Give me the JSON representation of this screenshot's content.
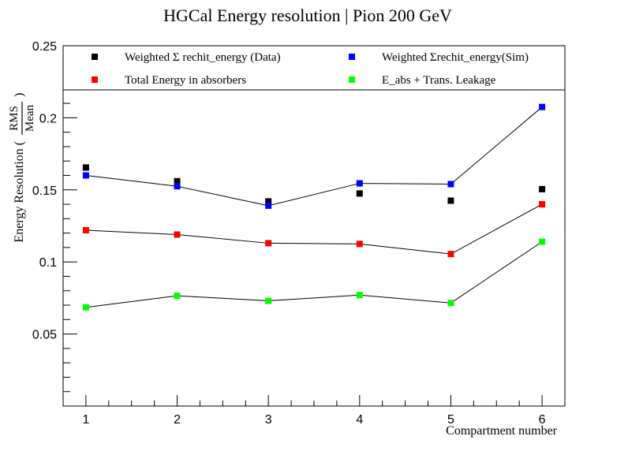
{
  "chart_data": {
    "type": "scatter",
    "title": "HGCal Energy resolution | Pion 200 GeV",
    "xlabel": "Compartment number",
    "ylabel_prefix": "Energy Resolution (",
    "ylabel_frac_num": "RMS",
    "ylabel_frac_den": "Mean",
    "ylabel_suffix": ")",
    "xlim": [
      0.75,
      6.25
    ],
    "ylim": [
      0.0,
      0.25
    ],
    "x_ticks": [
      1,
      2,
      3,
      4,
      5,
      6
    ],
    "x_tick_labels": [
      "1",
      "2",
      "3",
      "4",
      "5",
      "6"
    ],
    "y_ticks": [
      0.05,
      0.1,
      0.15,
      0.2,
      0.25
    ],
    "y_tick_labels": [
      "0.05",
      "0.1",
      "0.15",
      "0.2",
      "0.25"
    ],
    "grid": false,
    "legend_position": "top",
    "x": [
      1,
      2,
      3,
      4,
      5,
      6
    ],
    "series": [
      {
        "name": "Weighted Σ rechit_energy (Data)",
        "color": "#000000",
        "connected": false,
        "values": [
          0.1655,
          0.156,
          0.142,
          0.1475,
          0.1425,
          0.1505
        ]
      },
      {
        "name": "Weighted Σrechit_energy(Sim)",
        "color": "#0000ff",
        "connected": true,
        "values": [
          0.16,
          0.1525,
          0.139,
          0.1545,
          0.154,
          0.2075
        ]
      },
      {
        "name": "Total Energy in absorbers",
        "color": "#ff0000",
        "connected": true,
        "values": [
          0.122,
          0.119,
          0.113,
          0.1125,
          0.1055,
          0.14
        ]
      },
      {
        "name": "E_abs + Trans. Leakage",
        "color": "#00ff00",
        "connected": true,
        "values": [
          0.0685,
          0.0765,
          0.073,
          0.077,
          0.0715,
          0.114
        ]
      }
    ]
  }
}
